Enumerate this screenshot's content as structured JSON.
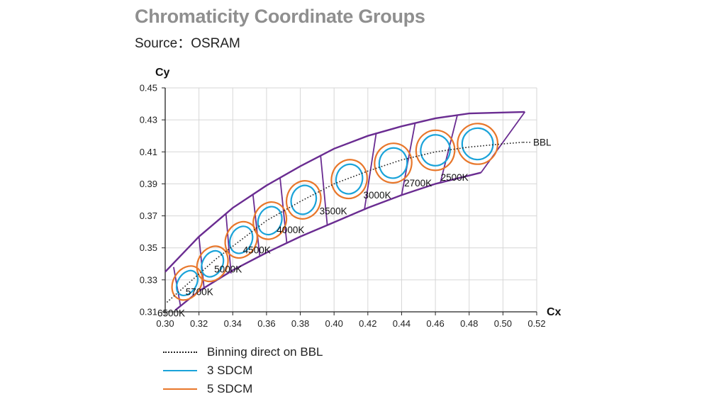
{
  "header": {
    "title": "Chromaticity Coordinate Groups",
    "source": "Source：OSRAM"
  },
  "chart_data": {
    "type": "scatter",
    "title": "Chromaticity Coordinate Groups",
    "subtitle": "Source：OSRAM",
    "xlabel": "Cx",
    "ylabel": "Cy",
    "xlim": [
      0.3,
      0.52
    ],
    "ylim": [
      0.31,
      0.45
    ],
    "xticks": [
      "0.30",
      "0.32",
      "0.34",
      "0.36",
      "0.38",
      "0.40",
      "0.42",
      "0.44",
      "0.46",
      "0.48",
      "0.50",
      "0.52"
    ],
    "yticks": [
      "0.31",
      "0.33",
      "0.35",
      "0.37",
      "0.39",
      "0.41",
      "0.43",
      "0.45"
    ],
    "grid": true,
    "bbl_label": "BBL",
    "bbl_curve": [
      [
        0.301,
        0.316
      ],
      [
        0.315,
        0.329
      ],
      [
        0.33,
        0.343
      ],
      [
        0.345,
        0.355
      ],
      [
        0.36,
        0.367
      ],
      [
        0.38,
        0.379
      ],
      [
        0.4,
        0.39
      ],
      [
        0.42,
        0.398
      ],
      [
        0.44,
        0.405
      ],
      [
        0.46,
        0.41
      ],
      [
        0.48,
        0.413
      ],
      [
        0.5,
        0.415
      ],
      [
        0.512,
        0.416
      ]
    ],
    "cct_groups": [
      {
        "cct": "6500K",
        "x": 0.313,
        "y": 0.328
      },
      {
        "cct": "5700K",
        "x": 0.328,
        "y": 0.34
      },
      {
        "cct": "5000K",
        "x": 0.345,
        "y": 0.355
      },
      {
        "cct": "4500K",
        "x": 0.362,
        "y": 0.367
      },
      {
        "cct": "4000K",
        "x": 0.382,
        "y": 0.38
      },
      {
        "cct": "3500K",
        "x": 0.409,
        "y": 0.393
      },
      {
        "cct": "3000K",
        "x": 0.435,
        "y": 0.403
      },
      {
        "cct": "2700K",
        "x": 0.46,
        "y": 0.411
      },
      {
        "cct": "2500K",
        "x": 0.485,
        "y": 0.415
      }
    ],
    "series": [
      {
        "name": "Binning direct on BBL",
        "style": "dotted",
        "color": "#222222"
      },
      {
        "name": "3 SDCM",
        "style": "ellipse",
        "color": "#1aa3d9"
      },
      {
        "name": "5 SDCM",
        "style": "ellipse",
        "color": "#e8772b"
      }
    ],
    "bin_envelope_color": "#6a2c91",
    "bin_envelope": {
      "upper": [
        [
          0.3,
          0.335
        ],
        [
          0.32,
          0.357
        ],
        [
          0.34,
          0.375
        ],
        [
          0.36,
          0.389
        ],
        [
          0.38,
          0.401
        ],
        [
          0.4,
          0.412
        ],
        [
          0.42,
          0.42
        ],
        [
          0.44,
          0.426
        ],
        [
          0.46,
          0.431
        ],
        [
          0.48,
          0.434
        ],
        [
          0.513,
          0.435
        ]
      ],
      "lower": [
        [
          0.306,
          0.311
        ],
        [
          0.32,
          0.323
        ],
        [
          0.34,
          0.336
        ],
        [
          0.36,
          0.347
        ],
        [
          0.38,
          0.357
        ],
        [
          0.4,
          0.366
        ],
        [
          0.42,
          0.375
        ],
        [
          0.44,
          0.383
        ],
        [
          0.46,
          0.39
        ],
        [
          0.487,
          0.397
        ]
      ],
      "dividers": [
        [
          [
            0.305,
            0.338
          ],
          [
            0.309,
            0.314
          ]
        ],
        [
          [
            0.32,
            0.357
          ],
          [
            0.323,
            0.325
          ]
        ],
        [
          [
            0.336,
            0.371
          ],
          [
            0.339,
            0.334
          ]
        ],
        [
          [
            0.352,
            0.383
          ],
          [
            0.356,
            0.345
          ]
        ],
        [
          [
            0.368,
            0.394
          ],
          [
            0.372,
            0.353
          ]
        ],
        [
          [
            0.392,
            0.408
          ],
          [
            0.396,
            0.364
          ]
        ],
        [
          [
            0.425,
            0.422
          ],
          [
            0.418,
            0.374
          ]
        ],
        [
          [
            0.448,
            0.428
          ],
          [
            0.44,
            0.383
          ]
        ],
        [
          [
            0.473,
            0.433
          ],
          [
            0.463,
            0.391
          ]
        ],
        [
          [
            0.513,
            0.435
          ],
          [
            0.487,
            0.397
          ]
        ]
      ]
    }
  }
}
